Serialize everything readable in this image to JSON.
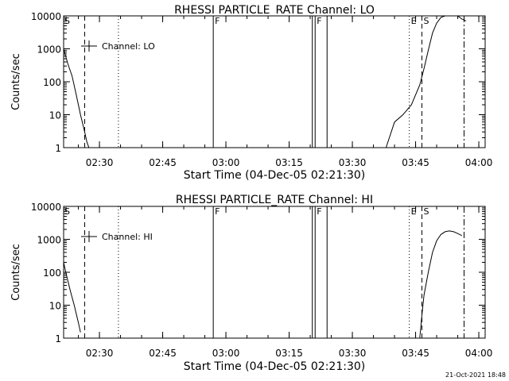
{
  "footer": {
    "timestamp": "21-Oct-2021 18:48"
  },
  "chart_data": [
    {
      "type": "line",
      "title": "RHESSI PARTICLE_RATE Channel: LO",
      "xlabel": "Start Time (04-Dec-05 02:21:30)",
      "ylabel": "Counts/sec",
      "legend": {
        "placement": "top-left",
        "label": "Channel: LO"
      },
      "y_scale": "log",
      "ylim": [
        1,
        10000
      ],
      "y_ticks": [
        1,
        10,
        100,
        1000,
        10000
      ],
      "y_tick_labels": [
        "1",
        "10",
        "100",
        "1000",
        "10000"
      ],
      "xlim": [
        "02:21:30",
        "04:01:30"
      ],
      "x_ticks": [
        "02:30",
        "02:45",
        "03:00",
        "03:15",
        "03:30",
        "03:45",
        "04:00"
      ],
      "series": [
        {
          "x": [
            "02:21:30",
            "02:22:30",
            "02:23:30",
            "02:24:30",
            "02:25:30",
            "02:26:30",
            "02:27:00",
            "02:27:30"
          ],
          "y": [
            1000,
            350,
            150,
            40,
            10,
            3,
            1.5,
            1
          ]
        },
        {
          "x": [
            "03:38:00",
            "03:40:00",
            "03:42:00",
            "03:44:00",
            "03:46:00",
            "03:47:00",
            "03:48:00",
            "03:49:00",
            "03:50:00",
            "03:51:00",
            "03:52:00",
            "03:53:00",
            "03:54:00",
            "03:55:00",
            "03:56:00",
            "03:57:00"
          ],
          "y": [
            1,
            6,
            10,
            20,
            80,
            250,
            900,
            3000,
            6000,
            9000,
            10000,
            10000,
            10000,
            10000,
            8000,
            7000
          ]
        }
      ],
      "vlines": [
        {
          "x": "02:26:30",
          "style": "dashed",
          "label": ""
        },
        {
          "x": "02:34:30",
          "style": "dotted",
          "label": ""
        },
        {
          "x": "02:57:00",
          "style": "solid",
          "label": "F"
        },
        {
          "x": "03:20:30",
          "style": "solid",
          "label": ""
        },
        {
          "x": "03:21:10",
          "style": "solid",
          "label": "F"
        },
        {
          "x": "03:24:00",
          "style": "solid",
          "label": ""
        },
        {
          "x": "03:43:30",
          "style": "dotted",
          "label": "E"
        },
        {
          "x": "03:46:30",
          "style": "dashed",
          "label": "S"
        },
        {
          "x": "03:56:30",
          "style": "dashdot",
          "label": ""
        }
      ],
      "edge_marker": "S"
    },
    {
      "type": "line",
      "title": "RHESSI PARTICLE_RATE Channel: HI",
      "xlabel": "Start Time (04-Dec-05 02:21:30)",
      "ylabel": "Counts/sec",
      "legend": {
        "placement": "top-left",
        "label": "Channel: HI"
      },
      "y_scale": "log",
      "ylim": [
        1,
        10000
      ],
      "y_ticks": [
        1,
        10,
        100,
        1000,
        10000
      ],
      "y_tick_labels": [
        "1",
        "10",
        "100",
        "1000",
        "10000"
      ],
      "xlim": [
        "02:21:30",
        "04:01:30"
      ],
      "x_ticks": [
        "02:30",
        "02:45",
        "03:00",
        "03:15",
        "03:30",
        "03:45",
        "04:00"
      ],
      "series": [
        {
          "x": [
            "02:21:30",
            "02:22:00",
            "02:23:00",
            "02:24:00",
            "02:25:00",
            "02:25:30"
          ],
          "y": [
            200,
            100,
            30,
            10,
            3,
            1.5
          ]
        },
        {
          "x": [
            "03:46:00",
            "03:46:30",
            "03:47:00",
            "03:48:00",
            "03:49:00",
            "03:50:00",
            "03:51:00",
            "03:52:00",
            "03:53:00",
            "03:54:00",
            "03:55:00",
            "03:56:00"
          ],
          "y": [
            1,
            5,
            20,
            100,
            400,
            900,
            1400,
            1700,
            1800,
            1700,
            1500,
            1300
          ]
        }
      ],
      "vlines": [
        {
          "x": "02:26:30",
          "style": "dashed",
          "label": ""
        },
        {
          "x": "02:34:30",
          "style": "dotted",
          "label": ""
        },
        {
          "x": "02:57:00",
          "style": "solid",
          "label": "F"
        },
        {
          "x": "03:20:30",
          "style": "solid",
          "label": ""
        },
        {
          "x": "03:21:10",
          "style": "solid",
          "label": "F"
        },
        {
          "x": "03:24:00",
          "style": "solid",
          "label": ""
        },
        {
          "x": "03:43:30",
          "style": "dotted",
          "label": "E"
        },
        {
          "x": "03:46:30",
          "style": "dashed",
          "label": "S"
        },
        {
          "x": "03:56:30",
          "style": "dashdot",
          "label": ""
        }
      ],
      "edge_marker": "S"
    }
  ]
}
